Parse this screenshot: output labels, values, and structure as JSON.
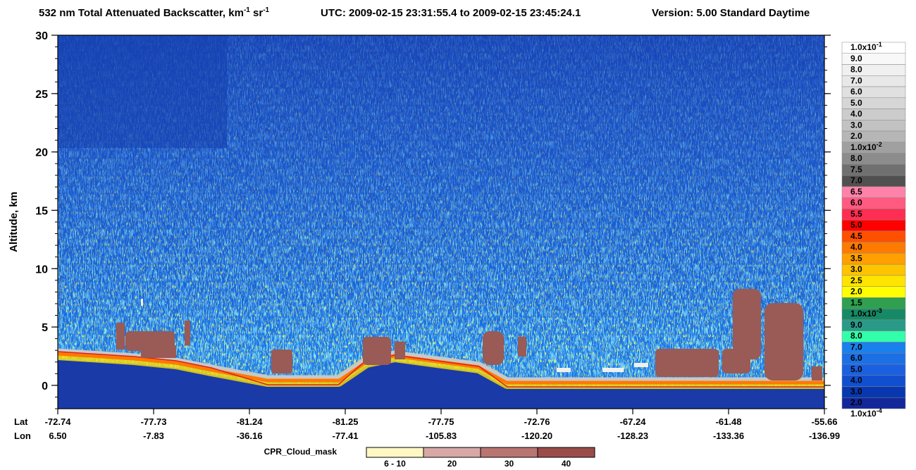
{
  "chart_data": {
    "type": "curtain",
    "title": [
      "532 nm Total Attenuated Backscatter, km",
      "-1",
      " sr",
      "-1"
    ],
    "utc": "UTC:  2009-02-15 23:31:55.4  to  2009-02-15 23:45:24.1",
    "version": "Version: 5.00  Standard  Daytime",
    "ylabel": "Altitude, km",
    "ylim": [
      -2,
      30
    ],
    "yticks": [
      0,
      5,
      10,
      15,
      20,
      25,
      30
    ],
    "x_row_labels": [
      "Lat",
      "Lon"
    ],
    "lat": [
      -72.74,
      -77.73,
      -81.24,
      -81.25,
      -77.75,
      -72.76,
      -67.24,
      -61.48,
      -55.66
    ],
    "lon": [
      {
        "value": 6.5,
        "label": "6.50"
      },
      -7.83,
      -36.16,
      -77.41,
      -105.83,
      {
        "value": -120.2,
        "label": "-120.20"
      },
      -128.23,
      -133.36,
      -136.99
    ],
    "colorbar": [
      {
        "label": "1.0x10",
        "exp": "-1",
        "color": "#ffffff"
      },
      {
        "label": "9.0",
        "color": "#f8f8f8"
      },
      {
        "label": "8.0",
        "color": "#f0f0f0"
      },
      {
        "label": "7.0",
        "color": "#e8e8e8"
      },
      {
        "label": "6.0",
        "color": "#e0e0e0"
      },
      {
        "label": "5.0",
        "color": "#d6d6d6"
      },
      {
        "label": "4.0",
        "color": "#cccccc"
      },
      {
        "label": "3.0",
        "color": "#c2c2c2"
      },
      {
        "label": "2.0",
        "color": "#b6b6b6"
      },
      {
        "label": "1.0x10",
        "exp": "-2",
        "color": "#a0a0a0"
      },
      {
        "label": "8.0",
        "color": "#8c8c8c"
      },
      {
        "label": "7.5",
        "color": "#707070"
      },
      {
        "label": "7.0",
        "color": "#505050"
      },
      {
        "label": "6.5",
        "color": "#ff82a8"
      },
      {
        "label": "6.0",
        "color": "#ff5a80"
      },
      {
        "label": "5.5",
        "color": "#ff2d52"
      },
      {
        "label": "5.0",
        "color": "#ff0000"
      },
      {
        "label": "4.5",
        "color": "#ff5000"
      },
      {
        "label": "4.0",
        "color": "#ff7a00"
      },
      {
        "label": "3.5",
        "color": "#ffa000"
      },
      {
        "label": "3.0",
        "color": "#ffc400"
      },
      {
        "label": "2.5",
        "color": "#ffe400"
      },
      {
        "label": "2.0",
        "color": "#ffff00"
      },
      {
        "label": "1.5",
        "color": "#30a050"
      },
      {
        "label": "1.0x10",
        "exp": "-3",
        "color": "#168a66"
      },
      {
        "label": "9.0",
        "color": "#2a9a88"
      },
      {
        "label": "8.0",
        "color": "#33ffaa"
      },
      {
        "label": "7.0",
        "color": "#1a80ec"
      },
      {
        "label": "6.0",
        "color": "#1a70e4"
      },
      {
        "label": "5.0",
        "color": "#1a60e0"
      },
      {
        "label": "4.0",
        "color": "#1050d0"
      },
      {
        "label": "3.0",
        "color": "#0838b0"
      },
      {
        "label": "2.0",
        "color": "#12289a"
      },
      {
        "label": "1.0x10",
        "exp": "-4"
      }
    ],
    "cloud_mask": {
      "label": "CPR_Cloud_mask",
      "classes": [
        {
          "label": "6 - 10",
          "color": "#fff8c4"
        },
        {
          "label": "20",
          "color": "#d8a8a6"
        },
        {
          "label": "30",
          "color": "#b87572"
        },
        {
          "label": "40",
          "color": "#9a4c4a"
        }
      ]
    }
  }
}
